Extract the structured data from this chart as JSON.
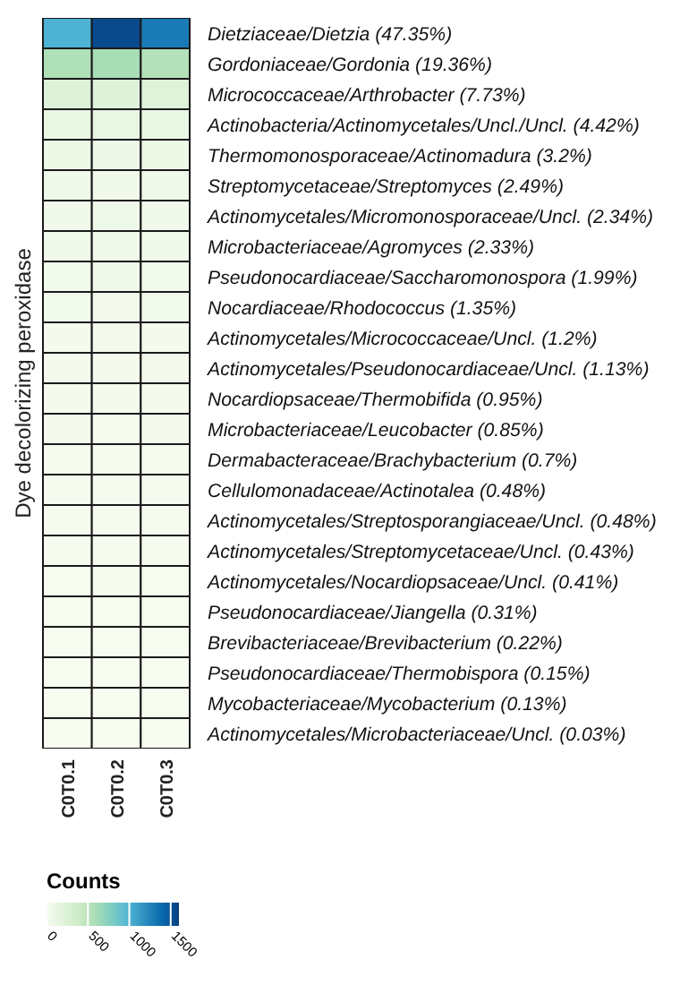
{
  "chart_data": {
    "type": "heatmap",
    "ylabel": "Dye decolorizing peroxidase",
    "clabel": "Counts",
    "categories": [
      "C0T0.1",
      "C0T0.2",
      "C0T0.3"
    ],
    "y_categories": [
      "Dietziaceae/Dietzia (47.35%)",
      "Gordoniaceae/Gordonia (19.36%)",
      "Micrococcaceae/Arthrobacter (7.73%)",
      "Actinobacteria/Actinomycetales/Uncl./Uncl. (4.42%)",
      "Thermomonosporaceae/Actinomadura (3.2%)",
      "Streptomycetaceae/Streptomyces (2.49%)",
      "Actinomycetales/Micromonosporaceae/Uncl. (2.34%)",
      "Microbacteriaceae/Agromyces (2.33%)",
      "Pseudonocardiaceae/Saccharomonospora (1.99%)",
      "Nocardiaceae/Rhodococcus (1.35%)",
      "Actinomycetales/Micrococcaceae/Uncl. (1.2%)",
      "Actinomycetales/Pseudonocardiaceae/Uncl. (1.13%)",
      "Nocardiopsaceae/Thermobifida (0.95%)",
      "Microbacteriaceae/Leucobacter (0.85%)",
      "Dermabacteraceae/Brachybacterium (0.7%)",
      "Cellulomonadaceae/Actinotalea (0.48%)",
      "Actinomycetales/Streptosporangiaceae/Uncl. (0.48%)",
      "Actinomycetales/Streptomycetaceae/Uncl. (0.43%)",
      "Actinomycetales/Nocardiopsaceae/Uncl. (0.41%)",
      "Pseudonocardiaceae/Jiangella (0.31%)",
      "Brevibacteriaceae/Brevibacterium (0.22%)",
      "Pseudonocardiaceae/Thermobispora (0.15%)",
      "Mycobacteriaceae/Mycobacterium (0.13%)",
      "Actinomycetales/Microbacteriaceae/Uncl. (0.03%)"
    ],
    "cells": [
      [
        1000,
        1550,
        1300
      ],
      [
        560,
        600,
        540
      ],
      [
        230,
        220,
        210
      ],
      [
        120,
        130,
        110
      ],
      [
        90,
        80,
        90
      ],
      [
        70,
        60,
        70
      ],
      [
        60,
        70,
        60
      ],
      [
        60,
        70,
        60
      ],
      [
        50,
        60,
        50
      ],
      [
        40,
        35,
        40
      ],
      [
        30,
        35,
        30
      ],
      [
        30,
        30,
        35
      ],
      [
        25,
        30,
        25
      ],
      [
        25,
        20,
        25
      ],
      [
        20,
        20,
        20
      ],
      [
        15,
        12,
        14
      ],
      [
        12,
        15,
        12
      ],
      [
        12,
        12,
        12
      ],
      [
        10,
        12,
        11
      ],
      [
        8,
        9,
        8
      ],
      [
        6,
        6,
        6
      ],
      [
        4,
        4,
        4
      ],
      [
        4,
        3,
        4
      ],
      [
        1,
        1,
        1
      ]
    ],
    "clim": [
      0,
      1600
    ],
    "cticks": [
      0,
      500,
      1000,
      1500
    ]
  }
}
